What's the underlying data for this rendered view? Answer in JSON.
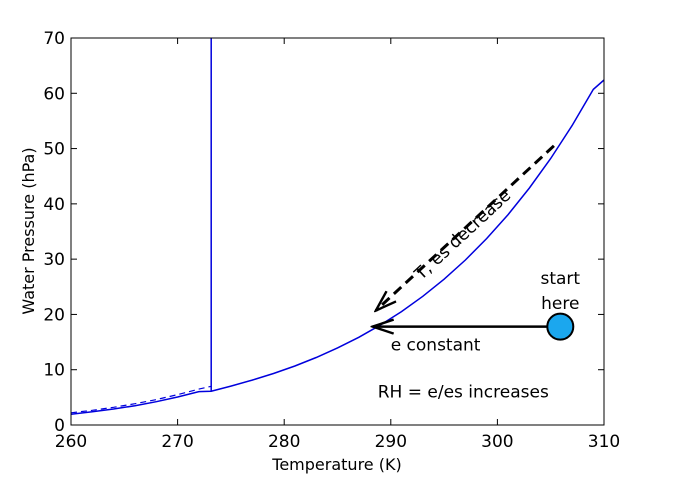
{
  "chart_data": {
    "type": "line",
    "title": "",
    "xlabel": "Temperature (K)",
    "ylabel": "Water Pressure (hPa)",
    "xlim": [
      260,
      310
    ],
    "ylim": [
      0,
      70
    ],
    "xticks": [
      260,
      270,
      280,
      290,
      300,
      310
    ],
    "yticks": [
      0,
      10,
      20,
      30,
      40,
      50,
      60,
      70
    ],
    "grid": false,
    "legend": "none",
    "series": [
      {
        "style": "solid",
        "color": "#0000dd",
        "x": [
          260,
          262,
          264,
          266,
          268,
          270,
          272,
          273.15,
          275,
          277,
          279,
          281,
          283,
          285,
          287,
          289,
          291,
          293,
          295,
          297,
          299,
          301,
          303,
          305,
          307,
          309,
          310
        ],
        "y": [
          1.95,
          2.38,
          2.89,
          3.49,
          4.21,
          5.06,
          6.04,
          6.11,
          7.03,
          8.12,
          9.32,
          10.67,
          12.21,
          13.94,
          15.87,
          18.05,
          20.51,
          23.28,
          26.38,
          29.85,
          33.73,
          38.05,
          42.87,
          48.21,
          54.14,
          60.7,
          62.4
        ]
      },
      {
        "style": "dashed",
        "color": "#0000dd",
        "x": [
          260,
          262,
          264,
          266,
          268,
          270,
          272,
          273.15
        ],
        "y": [
          2.2,
          2.66,
          3.2,
          3.85,
          4.6,
          5.5,
          6.5,
          7.0
        ]
      },
      {
        "style": "solid",
        "color": "#0000dd",
        "x": [
          273.15,
          273.15
        ],
        "y": [
          6.11,
          70
        ]
      }
    ],
    "annotations": {
      "start_label_line1": "start",
      "start_label_line2": "here",
      "process_label": "T, es decrease",
      "constant_label": "e constant",
      "rh_label": "RH = e/es increases"
    },
    "start_point": {
      "x": 305.9,
      "y": 17.8,
      "color": "#1ba7ee"
    },
    "horizontal_arrow": {
      "x_from": 305.9,
      "x_to": 288.3,
      "y": 17.8
    },
    "dashed_arrow": {
      "x_from": 305.3,
      "y_from": 50.5,
      "x_to": 288.6,
      "y_to": 20.7
    },
    "label_positions": {
      "start": {
        "x": 305.9,
        "y": 25.5
      },
      "process": {
        "x": 297.1,
        "y": 33.7
      },
      "constant": {
        "x": 294.2,
        "y": 13.5
      },
      "rh": {
        "x": 296.8,
        "y": 5.0
      }
    }
  }
}
